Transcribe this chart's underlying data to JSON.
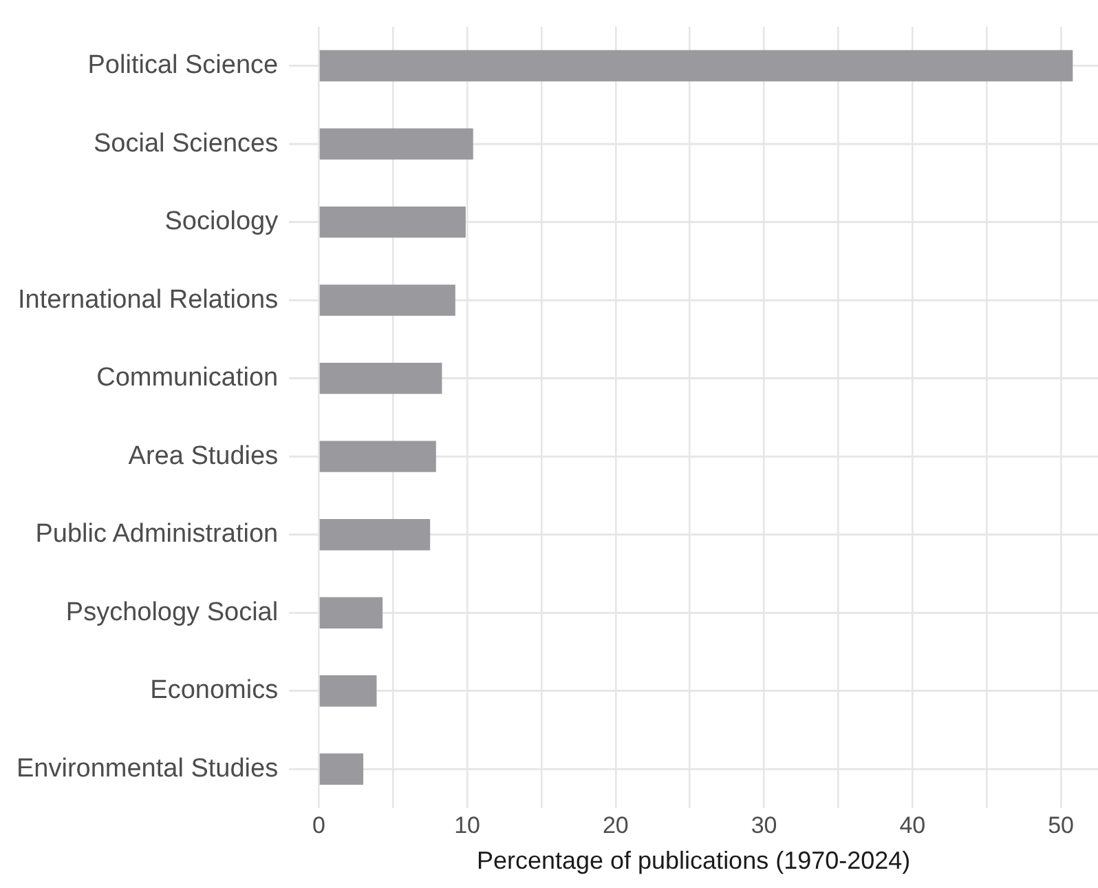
{
  "chart_data": {
    "type": "bar",
    "orientation": "horizontal",
    "xlabel": "Percentage of publications (1970-2024)",
    "categories": [
      "Political Science",
      "Social Sciences",
      "Sociology",
      "International Relations",
      "Communication",
      "Area Studies",
      "Public Administration",
      "Psychology Social",
      "Economics",
      "Environmental Studies"
    ],
    "values": [
      50.8,
      10.4,
      9.9,
      9.2,
      8.3,
      7.9,
      7.5,
      4.3,
      3.9,
      3.0
    ],
    "color": "#9a9a9e",
    "xlim": [
      -2,
      52.5
    ],
    "xticks": [
      0,
      {
        "value": 5,
        "label": null
      },
      10,
      {
        "value": 15,
        "label": null
      },
      20,
      {
        "value": 25,
        "label": null
      },
      30,
      {
        "value": 35,
        "label": null
      },
      40,
      {
        "value": 45,
        "label": null
      },
      50
    ],
    "grid": true,
    "legend": false
  }
}
